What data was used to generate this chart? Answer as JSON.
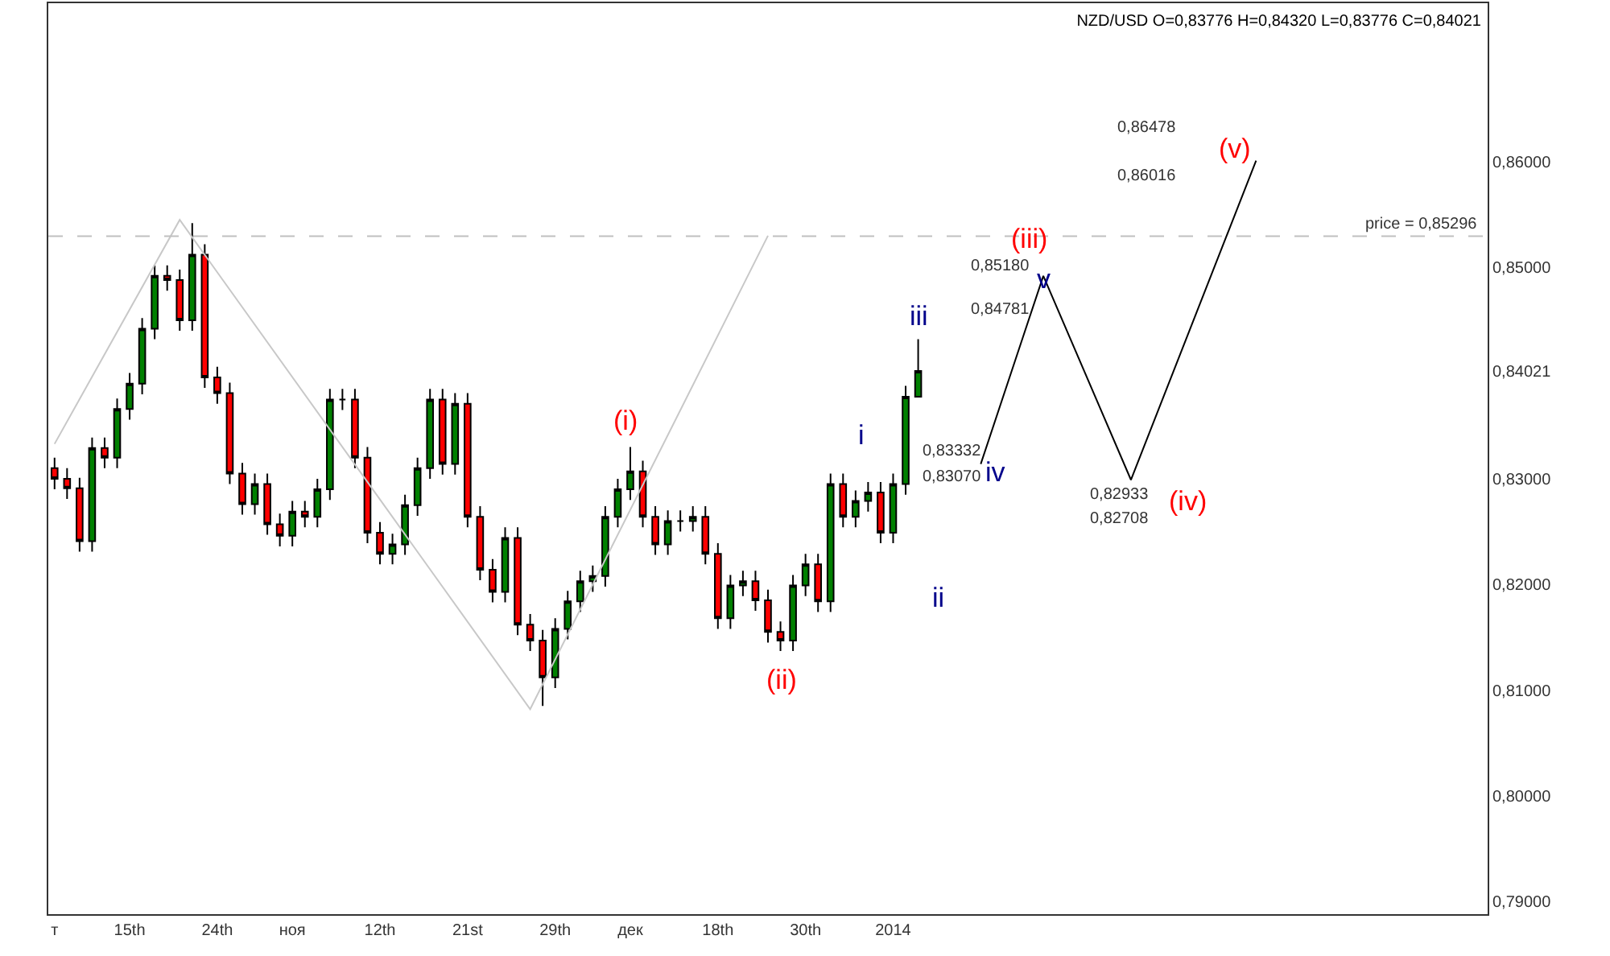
{
  "chart_data": {
    "type": "candlestick",
    "title": "NZD/USD O=0,83776 H=0,84320 L=0,83776 C=0,84021",
    "categories": [
      "т",
      null,
      null,
      null,
      null,
      null,
      "15th",
      null,
      null,
      null,
      null,
      null,
      null,
      "24th",
      null,
      null,
      null,
      null,
      null,
      "ноя",
      null,
      null,
      null,
      null,
      null,
      null,
      "12th",
      null,
      null,
      null,
      null,
      null,
      null,
      "21st",
      null,
      null,
      null,
      null,
      null,
      null,
      "29th",
      null,
      null,
      null,
      null,
      null,
      "дек",
      null,
      null,
      null,
      null,
      null,
      null,
      "18th",
      null,
      null,
      null,
      null,
      null,
      null,
      "30th",
      null,
      null,
      null,
      null,
      null,
      null,
      "2014",
      null,
      null,
      null,
      null,
      null,
      null,
      null,
      null,
      null,
      null,
      null,
      null,
      null,
      null,
      null,
      null,
      null,
      null,
      null,
      null,
      null,
      null,
      null,
      null,
      null,
      null,
      null,
      null,
      null,
      null,
      null,
      null,
      null,
      null,
      null,
      null,
      null,
      null,
      null,
      null,
      null,
      null,
      null,
      null,
      null,
      null,
      null
    ],
    "ohlc": [
      [
        0.831,
        0.832,
        0.829,
        0.83
      ],
      [
        0.83,
        0.831,
        0.8281,
        0.8291
      ],
      [
        0.8291,
        0.8301,
        0.8231,
        0.8241
      ],
      [
        0.8241,
        0.8339,
        0.8231,
        0.8329
      ],
      [
        0.8329,
        0.8339,
        0.831,
        0.832
      ],
      [
        0.832,
        0.8376,
        0.831,
        0.8366
      ],
      [
        0.8366,
        0.84,
        0.8356,
        0.839
      ],
      [
        0.839,
        0.8452,
        0.838,
        0.8442
      ],
      [
        0.8442,
        0.8502,
        0.8432,
        0.8492
      ],
      [
        0.8492,
        0.8502,
        0.8478,
        0.8488
      ],
      [
        0.8488,
        0.8498,
        0.844,
        0.845
      ],
      [
        0.845,
        0.8542,
        0.844,
        0.8512
      ],
      [
        0.8512,
        0.8522,
        0.8386,
        0.8396
      ],
      [
        0.8396,
        0.8406,
        0.8371,
        0.8381
      ],
      [
        0.8381,
        0.8391,
        0.8295,
        0.8305
      ],
      [
        0.8305,
        0.8315,
        0.8266,
        0.8276
      ],
      [
        0.8276,
        0.8305,
        0.8266,
        0.8295
      ],
      [
        0.8295,
        0.8305,
        0.8247,
        0.8257
      ],
      [
        0.8257,
        0.8267,
        0.8236,
        0.8246
      ],
      [
        0.8246,
        0.8279,
        0.8236,
        0.8269
      ],
      [
        0.8269,
        0.8279,
        0.8254,
        0.8264
      ],
      [
        0.8264,
        0.83,
        0.8254,
        0.829
      ],
      [
        0.829,
        0.8385,
        0.828,
        0.8375
      ],
      [
        0.8375,
        0.8385,
        0.8365,
        0.8375
      ],
      [
        0.8375,
        0.8385,
        0.831,
        0.832
      ],
      [
        0.832,
        0.833,
        0.8239,
        0.8249
      ],
      [
        0.8249,
        0.8259,
        0.8219,
        0.8229
      ],
      [
        0.8229,
        0.8248,
        0.8219,
        0.8238
      ],
      [
        0.8238,
        0.8285,
        0.8228,
        0.8275
      ],
      [
        0.8275,
        0.832,
        0.8265,
        0.831
      ],
      [
        0.831,
        0.8385,
        0.83,
        0.8375
      ],
      [
        0.8375,
        0.8385,
        0.8304,
        0.8314
      ],
      [
        0.8314,
        0.8381,
        0.8304,
        0.8371
      ],
      [
        0.8371,
        0.8381,
        0.8254,
        0.8264
      ],
      [
        0.8264,
        0.8274,
        0.8204,
        0.8214
      ],
      [
        0.8214,
        0.8224,
        0.8183,
        0.8193
      ],
      [
        0.8193,
        0.8254,
        0.8183,
        0.8244
      ],
      [
        0.8244,
        0.8254,
        0.8152,
        0.8162
      ],
      [
        0.8162,
        0.8172,
        0.8137,
        0.8147
      ],
      [
        0.8147,
        0.8157,
        0.8085,
        0.8112
      ],
      [
        0.8112,
        0.8168,
        0.8102,
        0.8158
      ],
      [
        0.8158,
        0.8194,
        0.8148,
        0.8184
      ],
      [
        0.8184,
        0.8213,
        0.8174,
        0.8203
      ],
      [
        0.8203,
        0.8218,
        0.8193,
        0.8208
      ],
      [
        0.8208,
        0.8274,
        0.8198,
        0.8264
      ],
      [
        0.8264,
        0.83,
        0.8254,
        0.829
      ],
      [
        0.829,
        0.833,
        0.828,
        0.8307
      ],
      [
        0.8307,
        0.8317,
        0.8254,
        0.8264
      ],
      [
        0.8264,
        0.8274,
        0.8228,
        0.8238
      ],
      [
        0.8238,
        0.827,
        0.8228,
        0.826
      ],
      [
        0.826,
        0.827,
        0.825,
        0.826
      ],
      [
        0.826,
        0.8274,
        0.825,
        0.8264
      ],
      [
        0.8264,
        0.8274,
        0.8219,
        0.8229
      ],
      [
        0.8229,
        0.8239,
        0.8158,
        0.8168
      ],
      [
        0.8168,
        0.8209,
        0.8158,
        0.8199
      ],
      [
        0.8199,
        0.8213,
        0.8189,
        0.8203
      ],
      [
        0.8203,
        0.8213,
        0.8175,
        0.8185
      ],
      [
        0.8185,
        0.8195,
        0.8145,
        0.8155
      ],
      [
        0.8155,
        0.8165,
        0.8137,
        0.8147
      ],
      [
        0.8147,
        0.8209,
        0.8137,
        0.8199
      ],
      [
        0.8199,
        0.8229,
        0.8189,
        0.8219
      ],
      [
        0.8219,
        0.8229,
        0.8174,
        0.8184
      ],
      [
        0.8184,
        0.8305,
        0.8174,
        0.8295
      ],
      [
        0.8295,
        0.8305,
        0.8254,
        0.8264
      ],
      [
        0.8264,
        0.8289,
        0.8254,
        0.8279
      ],
      [
        0.8279,
        0.8297,
        0.8269,
        0.8287
      ],
      [
        0.8287,
        0.8297,
        0.8239,
        0.8249
      ],
      [
        0.8249,
        0.8305,
        0.8239,
        0.8295
      ],
      [
        0.8295,
        0.8388,
        0.8285,
        0.83776
      ],
      [
        0.83776,
        0.8432,
        0.83776,
        0.84021
      ],
      null,
      null,
      null,
      null,
      null,
      null,
      null,
      null,
      null,
      null,
      null,
      null,
      null,
      null,
      null,
      null,
      null,
      null,
      null,
      null,
      null,
      null,
      null,
      null,
      null,
      null,
      null,
      null,
      null,
      null,
      null,
      null,
      null,
      null,
      null,
      null,
      null,
      null,
      null,
      null,
      null,
      null,
      null,
      null,
      null
    ],
    "series": [
      {
        "type": "line",
        "color": "#c8c8c8",
        "values": [
          0.8333,
          null,
          null,
          null,
          null,
          null,
          null,
          null,
          null,
          null,
          0.8545,
          null,
          null,
          null,
          null,
          null,
          null,
          null,
          null,
          null,
          null,
          null,
          null,
          null,
          null,
          null,
          null,
          null,
          null,
          null,
          null,
          null,
          null,
          null,
          null,
          null,
          null,
          null,
          0.8082,
          null,
          null,
          null,
          null,
          null,
          null,
          null,
          null,
          null,
          null,
          null,
          null,
          null,
          null,
          null,
          null,
          null,
          null,
          0.853,
          null,
          null,
          null,
          null,
          null,
          null,
          null,
          null,
          null,
          null,
          null,
          null,
          null,
          null,
          null,
          null,
          null,
          null,
          null,
          null,
          null,
          null,
          null,
          null,
          null,
          null,
          null,
          null,
          null,
          null,
          null,
          null,
          null,
          null,
          null,
          null,
          null,
          null,
          null,
          null,
          null,
          null,
          null,
          null,
          null,
          null,
          null,
          null,
          null,
          null,
          null,
          null,
          null,
          null,
          null,
          null,
          null
        ]
      },
      {
        "type": "line",
        "color": "#000000",
        "values": [
          null,
          null,
          null,
          null,
          null,
          null,
          null,
          null,
          null,
          null,
          null,
          null,
          null,
          null,
          null,
          null,
          null,
          null,
          null,
          null,
          null,
          null,
          null,
          null,
          null,
          null,
          null,
          null,
          null,
          null,
          null,
          null,
          null,
          null,
          null,
          null,
          null,
          null,
          null,
          null,
          null,
          null,
          null,
          null,
          null,
          null,
          null,
          null,
          null,
          null,
          null,
          null,
          null,
          null,
          null,
          null,
          null,
          null,
          null,
          null,
          null,
          null,
          null,
          null,
          null,
          null,
          null,
          null,
          null,
          null,
          null,
          null,
          null,
          null,
          0.8314,
          null,
          null,
          null,
          null,
          0.8492,
          null,
          null,
          null,
          null,
          null,
          null,
          0.8299,
          null,
          null,
          null,
          null,
          null,
          null,
          null,
          null,
          null,
          0.8601,
          null,
          null,
          null,
          null,
          null,
          null,
          null,
          null,
          null,
          null,
          null,
          null,
          null,
          null,
          null,
          null,
          null,
          null
        ]
      }
    ],
    "ylim": [
      0.7888,
      0.875
    ],
    "yticks": [
      {
        "value": 0.79,
        "label": "0,79000"
      },
      {
        "value": 0.8,
        "label": "0,80000"
      },
      {
        "value": 0.81,
        "label": "0,81000"
      },
      {
        "value": 0.82,
        "label": "0,82000"
      },
      {
        "value": 0.83,
        "label": "0,83000"
      },
      {
        "value": 0.84021,
        "label": "0,84021"
      },
      {
        "value": 0.85,
        "label": "0,85000"
      },
      {
        "value": 0.86,
        "label": "0,86000"
      }
    ],
    "ref_lines": [
      {
        "axis": "y",
        "value": 0.85296,
        "label": "price = 0,85296",
        "color": "#c0c0c0",
        "line_style": "dashed"
      }
    ],
    "annotations": [
      "(i)",
      "(ii)",
      "i",
      "ii",
      "iii",
      "iv",
      "v",
      "(iii)",
      "(iv)",
      "(v)",
      "0,83332",
      "0,83070",
      "0,85180",
      "0,84781",
      "0,82933",
      "0,82708",
      "0,86478",
      "0,86016"
    ]
  }
}
